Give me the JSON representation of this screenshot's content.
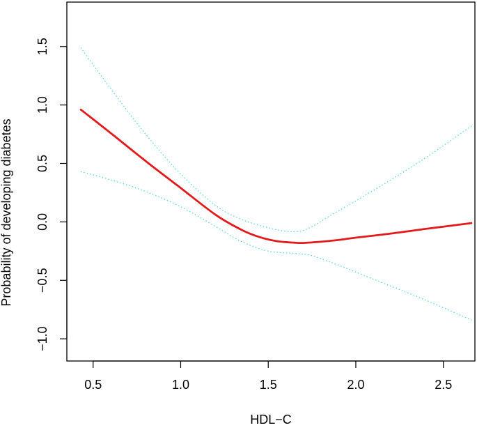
{
  "chart_data": {
    "type": "line",
    "xlabel": "HDL−C",
    "ylabel": "Probability of developing diabetes",
    "xlim": [
      0.35,
      2.68
    ],
    "ylim": [
      -1.19,
      1.88
    ],
    "x_ticks": [
      0.5,
      1.0,
      1.5,
      2.0,
      2.5
    ],
    "x_tick_labels": [
      "0.5",
      "1.0",
      "1.5",
      "2.0",
      "2.5"
    ],
    "y_ticks": [
      -1.0,
      -0.5,
      0.0,
      0.5,
      1.0,
      1.5
    ],
    "y_tick_labels": [
      "−1.0",
      "−0.5",
      "0.0",
      "0.5",
      "1.0",
      "1.5"
    ],
    "grid": false,
    "legend": "none",
    "series": [
      {
        "role": "estimate",
        "style": "solid",
        "color": "#e31a1c",
        "x": [
          0.43,
          0.6,
          0.8,
          1.0,
          1.2,
          1.35,
          1.45,
          1.55,
          1.65,
          1.7,
          1.8,
          1.9,
          2.0,
          2.2,
          2.4,
          2.66
        ],
        "y": [
          0.96,
          0.76,
          0.52,
          0.29,
          0.06,
          -0.07,
          -0.13,
          -0.165,
          -0.178,
          -0.18,
          -0.17,
          -0.155,
          -0.135,
          -0.1,
          -0.06,
          -0.01
        ]
      },
      {
        "role": "upper-ci",
        "style": "dotted",
        "color": "#5fd6e8",
        "x": [
          0.43,
          0.6,
          0.8,
          1.0,
          1.2,
          1.35,
          1.5,
          1.6,
          1.68,
          1.75,
          1.85,
          2.0,
          2.2,
          2.4,
          2.66
        ],
        "y": [
          1.49,
          1.14,
          0.75,
          0.41,
          0.14,
          0.02,
          -0.05,
          -0.08,
          -0.08,
          -0.04,
          0.05,
          0.18,
          0.36,
          0.55,
          0.82
        ]
      },
      {
        "role": "lower-ci",
        "style": "dotted",
        "color": "#5fd6e8",
        "x": [
          0.43,
          0.6,
          0.8,
          1.0,
          1.2,
          1.35,
          1.5,
          1.65,
          1.75,
          1.9,
          2.0,
          2.2,
          2.4,
          2.66
        ],
        "y": [
          0.43,
          0.36,
          0.26,
          0.13,
          -0.04,
          -0.17,
          -0.25,
          -0.27,
          -0.29,
          -0.37,
          -0.43,
          -0.55,
          -0.67,
          -0.84
        ]
      }
    ]
  }
}
